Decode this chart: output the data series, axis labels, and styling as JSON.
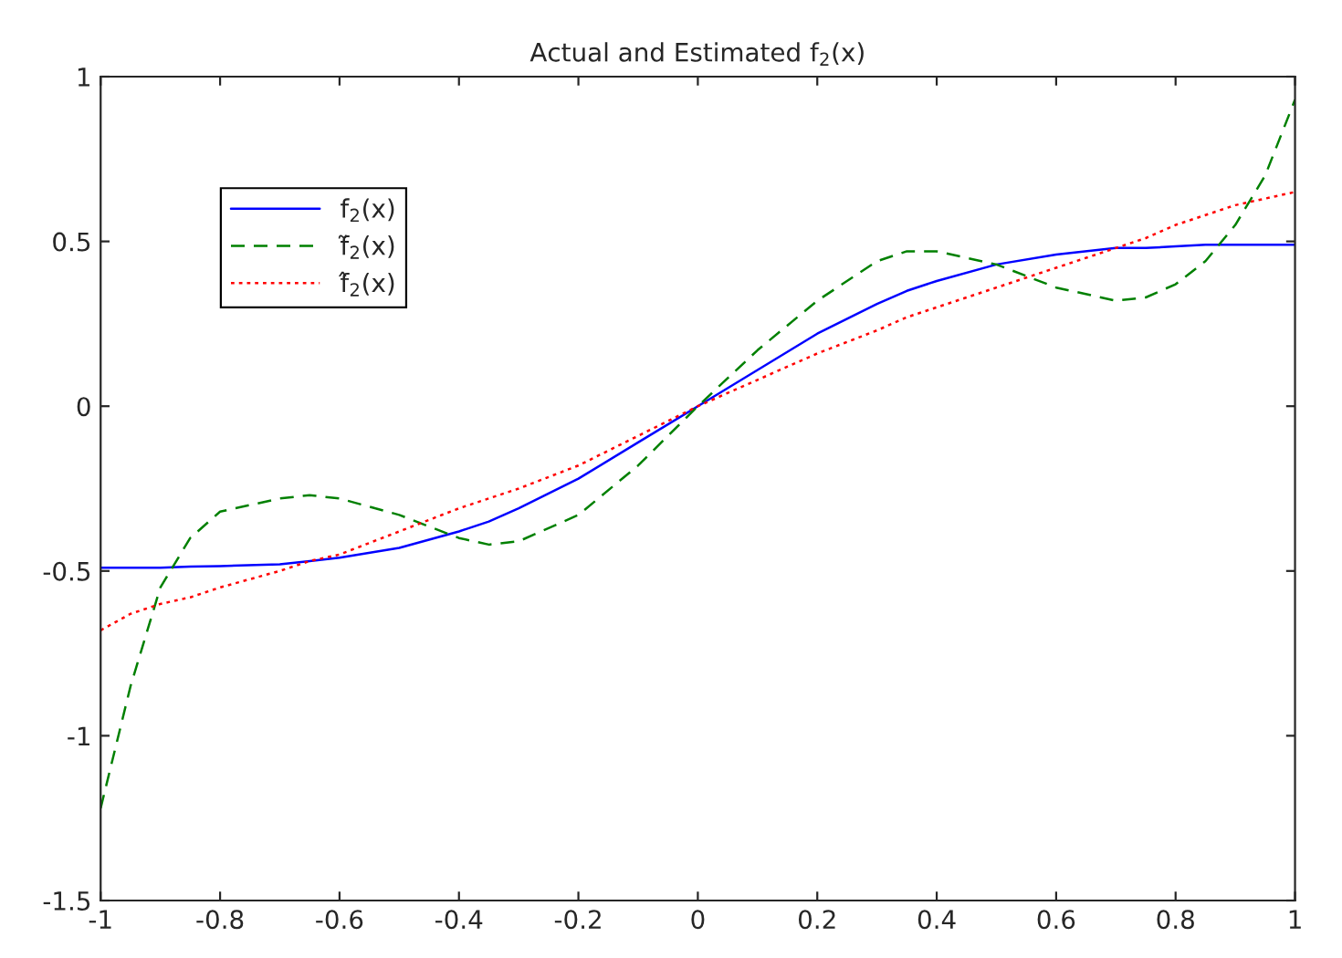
{
  "chart_data": {
    "type": "line",
    "title": "Actual and Estimated f$_{2}$(x)",
    "x": [
      -1,
      -0.95,
      -0.9,
      -0.85,
      -0.8,
      -0.7,
      -0.65,
      -0.6,
      -0.5,
      -0.4,
      -0.35,
      -0.3,
      -0.2,
      -0.1,
      0,
      0.1,
      0.2,
      0.3,
      0.35,
      0.4,
      0.5,
      0.6,
      0.7,
      0.75,
      0.8,
      0.85,
      0.9,
      0.95,
      1
    ],
    "series": [
      {
        "name": "f$_{2}$(x)",
        "color": "#0000ff",
        "line_style": "solid",
        "values": [
          -0.49,
          -0.49,
          -0.49,
          -0.487,
          -0.485,
          -0.48,
          -0.47,
          -0.46,
          -0.43,
          -0.38,
          -0.35,
          -0.31,
          -0.22,
          -0.11,
          0,
          0.11,
          0.22,
          0.31,
          0.35,
          0.38,
          0.43,
          0.46,
          0.48,
          0.48,
          0.485,
          0.49,
          0.49,
          0.49,
          0.49
        ]
      },
      {
        "name": "f̃$_{2}$(x)",
        "color": "#008000",
        "line_style": "dashed",
        "values": [
          -1.22,
          -0.85,
          -0.55,
          -0.4,
          -0.32,
          -0.28,
          -0.27,
          -0.28,
          -0.33,
          -0.4,
          -0.42,
          -0.41,
          -0.33,
          -0.18,
          0,
          0.17,
          0.32,
          0.44,
          0.47,
          0.47,
          0.43,
          0.36,
          0.32,
          0.33,
          0.37,
          0.44,
          0.55,
          0.7,
          0.93
        ]
      },
      {
        "name": "f̂$_{2}$(x)",
        "color": "#ff0000",
        "line_style": "dotted",
        "values": [
          -0.68,
          -0.63,
          -0.6,
          -0.58,
          -0.55,
          -0.5,
          -0.47,
          -0.45,
          -0.38,
          -0.31,
          -0.28,
          -0.25,
          -0.18,
          -0.09,
          0,
          0.08,
          0.16,
          0.23,
          0.27,
          0.3,
          0.36,
          0.42,
          0.48,
          0.51,
          0.55,
          0.58,
          0.61,
          0.63,
          0.65
        ]
      }
    ],
    "xlim": [
      -1,
      1
    ],
    "ylim": [
      -1.5,
      1
    ],
    "xticks": [
      -1,
      -0.8,
      -0.6,
      -0.4,
      -0.2,
      0,
      0.2,
      0.4,
      0.6,
      0.8,
      1
    ],
    "yticks": [
      -1.5,
      -1,
      -0.5,
      0,
      0.5,
      1
    ],
    "grid": false,
    "legend": "top left",
    "marker": "none"
  }
}
